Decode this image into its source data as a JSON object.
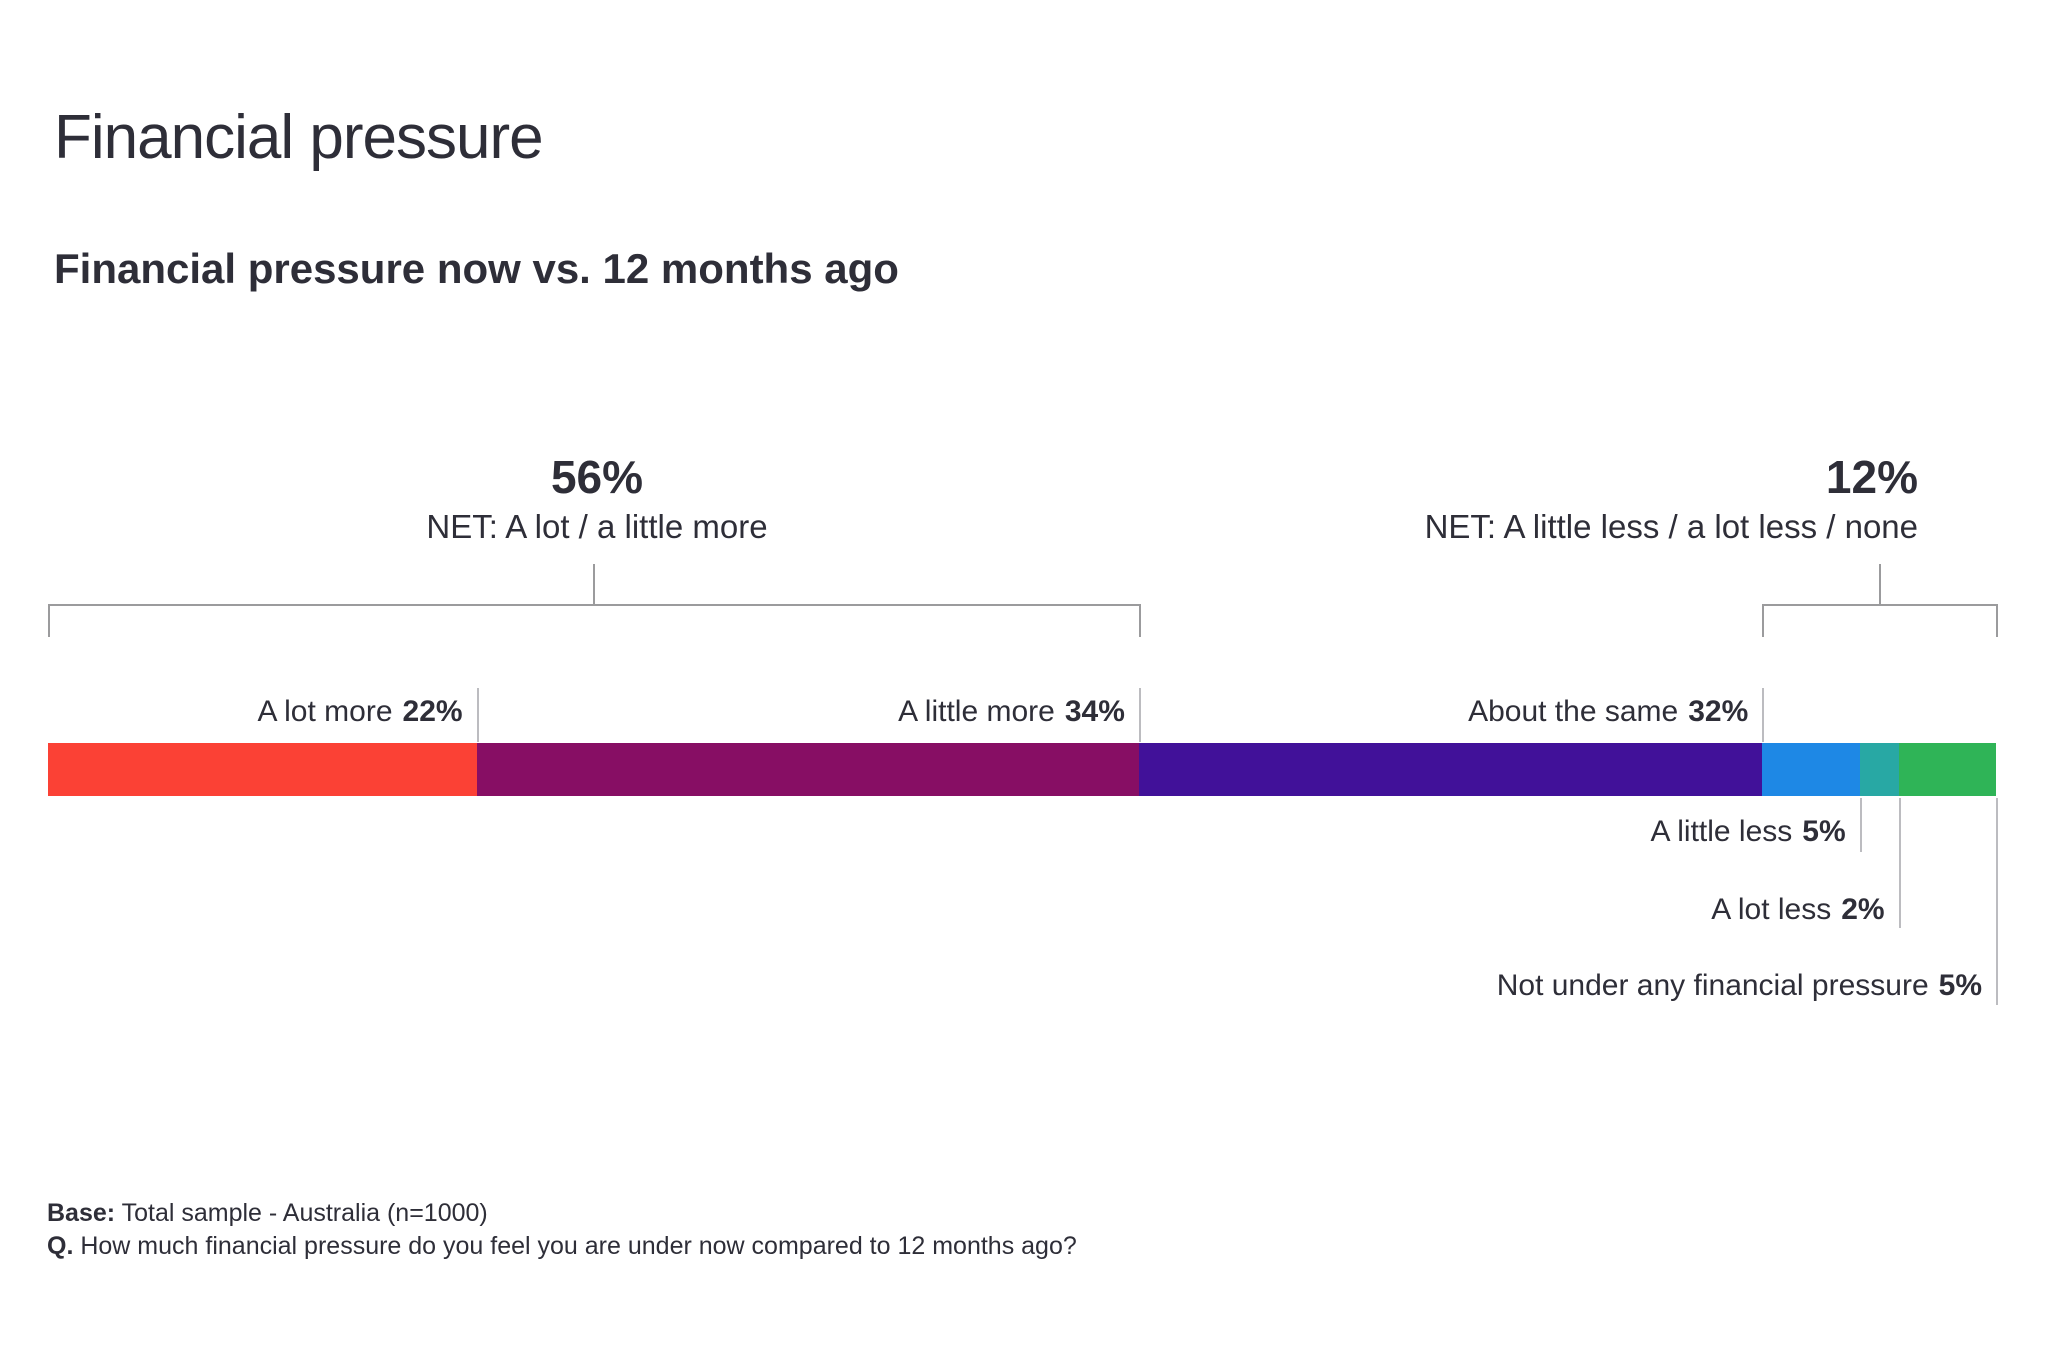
{
  "page": {
    "title": "Financial pressure",
    "subtitle": "Financial pressure now vs. 12 months ago"
  },
  "colors": {
    "text": "#2E2E38",
    "bracket_gray": "#9B9B9D",
    "tick_gray": "#BCBCC0",
    "background": "#FFFFFF"
  },
  "chart_data": {
    "type": "bar",
    "variant": "horizontal-stacked-100pct",
    "title": "Financial pressure now vs. 12 months ago",
    "xlim": [
      0,
      100
    ],
    "grid": false,
    "legend": "none",
    "segments": [
      {
        "label": "A lot more",
        "value": 22,
        "display": "22%",
        "color": "#FB4135",
        "label_position": "above"
      },
      {
        "label": "A little more",
        "value": 34,
        "display": "34%",
        "color": "#870E64",
        "label_position": "above"
      },
      {
        "label": "About the same",
        "value": 32,
        "display": "32%",
        "color": "#411199",
        "label_position": "above"
      },
      {
        "label": "A little less",
        "value": 5,
        "display": "5%",
        "color": "#1E88E5",
        "label_position": "below"
      },
      {
        "label": "A lot less",
        "value": 2,
        "display": "2%",
        "color": "#28A8A4",
        "label_position": "below"
      },
      {
        "label": "Not  under any financial pressure",
        "value": 5,
        "display": "5%",
        "color": "#2FB457",
        "label_position": "below"
      }
    ],
    "nets": [
      {
        "value_display": "56%",
        "label": "NET: A lot / a little more",
        "span_pct": [
          0,
          56
        ],
        "align": "center"
      },
      {
        "value_display": "12%",
        "label": "NET: A little less / a lot less / none",
        "span_pct": [
          88,
          100
        ],
        "align": "right"
      }
    ]
  },
  "footer": {
    "base_label": "Base:",
    "base_text": " Total sample - Australia (n=1000)",
    "q_label": "Q.",
    "q_text": " How much financial pressure do you feel you are under now compared to 12 months ago?"
  }
}
